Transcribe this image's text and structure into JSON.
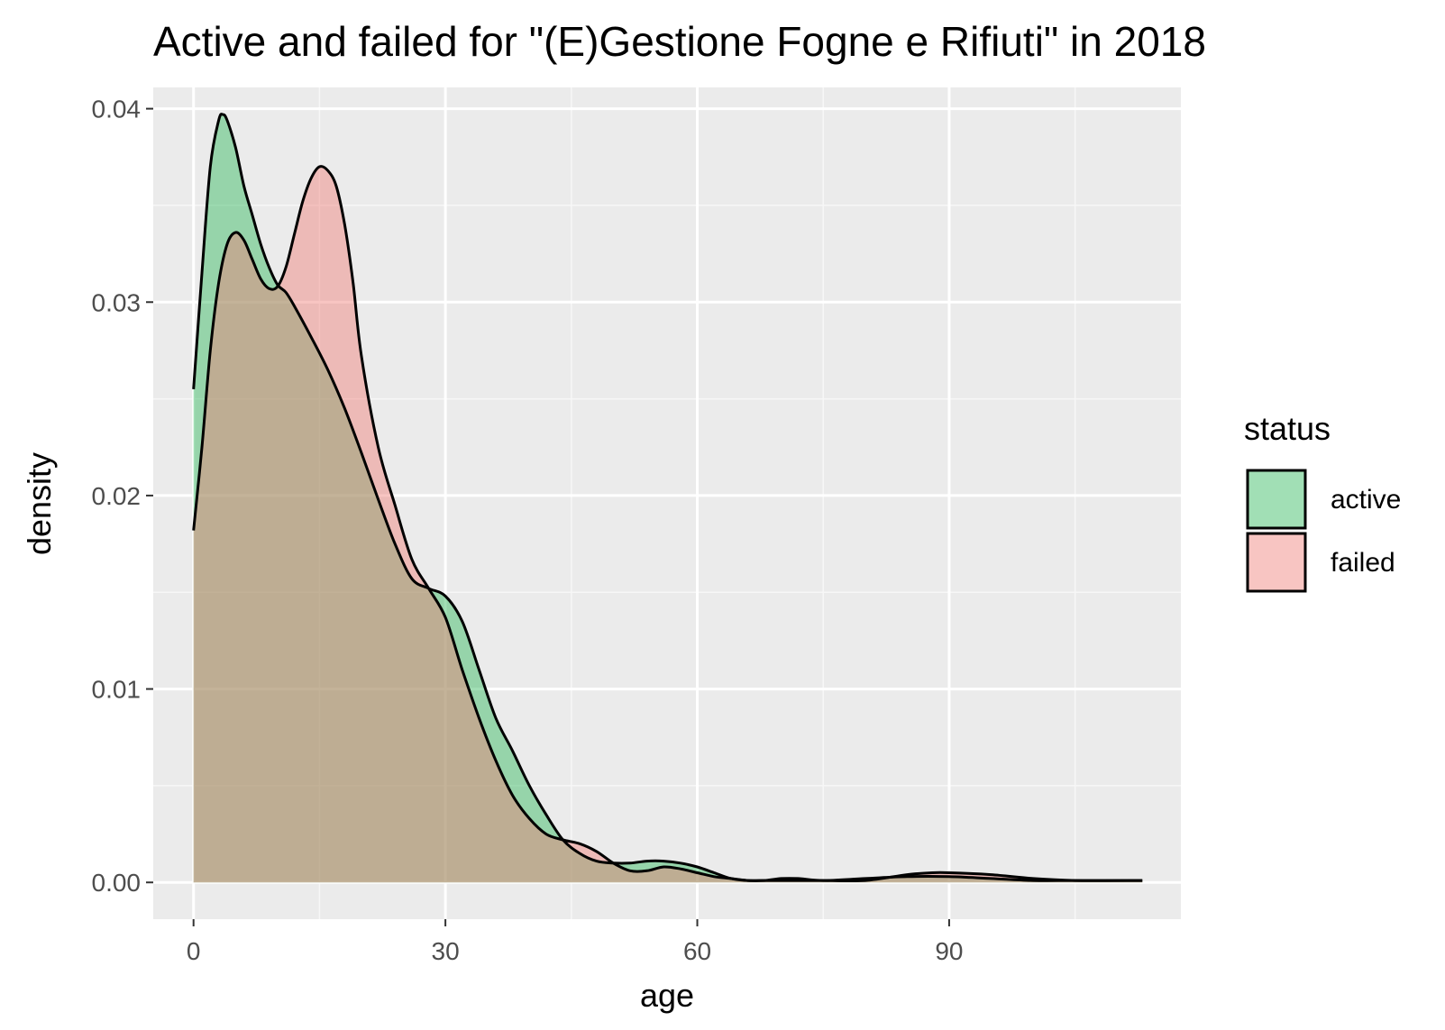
{
  "chart_data": {
    "type": "area",
    "title": "Active and failed for \"(E)Gestione Fogne e Rifiuti\" in 2018",
    "xlabel": "age",
    "ylabel": "density",
    "xlim": [
      -4.8,
      117.6
    ],
    "ylim": [
      -0.0019,
      0.0411
    ],
    "x_ticks": [
      0,
      30,
      60,
      90
    ],
    "x_tick_labels": [
      "0",
      "30",
      "60",
      "90"
    ],
    "y_ticks": [
      0,
      0.01,
      0.02,
      0.03,
      0.04
    ],
    "y_tick_labels": [
      "0.00",
      "0.01",
      "0.02",
      "0.03",
      "0.04"
    ],
    "grid": true,
    "legend": {
      "title": "status",
      "position": "right"
    },
    "series": [
      {
        "name": "active",
        "color": "#2eb85c",
        "fill_alpha": 0.45,
        "x": [
          0,
          1,
          2,
          3,
          3.5,
          4,
          5,
          6,
          7,
          8,
          9,
          10,
          11,
          12,
          14,
          16,
          18,
          20,
          22,
          24,
          26,
          28,
          30,
          32,
          34,
          36,
          38,
          40,
          42,
          44,
          46,
          48,
          50,
          52,
          54,
          56,
          58,
          60,
          62,
          64,
          66,
          68,
          70,
          72,
          75,
          80,
          85,
          90,
          95,
          100,
          105,
          113
        ],
        "y": [
          0.0255,
          0.0315,
          0.037,
          0.0394,
          0.0397,
          0.0394,
          0.038,
          0.036,
          0.0345,
          0.033,
          0.0318,
          0.0309,
          0.0305,
          0.0298,
          0.0282,
          0.0265,
          0.0245,
          0.0222,
          0.0198,
          0.0175,
          0.0157,
          0.0152,
          0.0148,
          0.0135,
          0.011,
          0.0085,
          0.0068,
          0.005,
          0.0035,
          0.0022,
          0.0015,
          0.0011,
          0.001,
          0.001,
          0.0011,
          0.0011,
          0.001,
          0.0008,
          0.0005,
          0.0002,
          0.0001,
          0.0001,
          0.0002,
          0.0002,
          0.0001,
          0.0002,
          0.0003,
          0.0003,
          0.0002,
          0.0001,
          0.0001,
          0.0001
        ]
      },
      {
        "name": "failed",
        "color": "#f07e78",
        "fill_alpha": 0.45,
        "x": [
          0,
          1,
          2,
          3,
          4,
          5,
          6,
          7,
          8,
          9,
          10,
          11,
          12,
          13,
          14,
          15,
          16,
          17,
          18,
          19,
          20,
          22,
          24,
          26,
          28,
          30,
          32,
          34,
          36,
          38,
          40,
          42,
          44,
          46,
          48,
          50,
          52,
          54,
          56,
          58,
          60,
          62,
          64,
          66,
          68,
          70,
          75,
          80,
          85,
          88,
          90,
          95,
          100,
          105,
          113
        ],
        "y": [
          0.0182,
          0.0225,
          0.0275,
          0.031,
          0.033,
          0.0336,
          0.0332,
          0.0322,
          0.0312,
          0.0307,
          0.0308,
          0.0318,
          0.0335,
          0.0352,
          0.0364,
          0.037,
          0.0368,
          0.036,
          0.034,
          0.031,
          0.0272,
          0.0225,
          0.0195,
          0.0167,
          0.0152,
          0.0137,
          0.011,
          0.0085,
          0.0063,
          0.0045,
          0.0033,
          0.0025,
          0.0022,
          0.002,
          0.0016,
          0.001,
          0.0006,
          0.0006,
          0.0008,
          0.0007,
          0.0005,
          0.0003,
          0.0002,
          0.0001,
          0.0001,
          0.0001,
          0.0001,
          0.0001,
          0.0004,
          0.0005,
          0.0005,
          0.0004,
          0.0002,
          0.0001,
          0.0001
        ]
      }
    ]
  }
}
